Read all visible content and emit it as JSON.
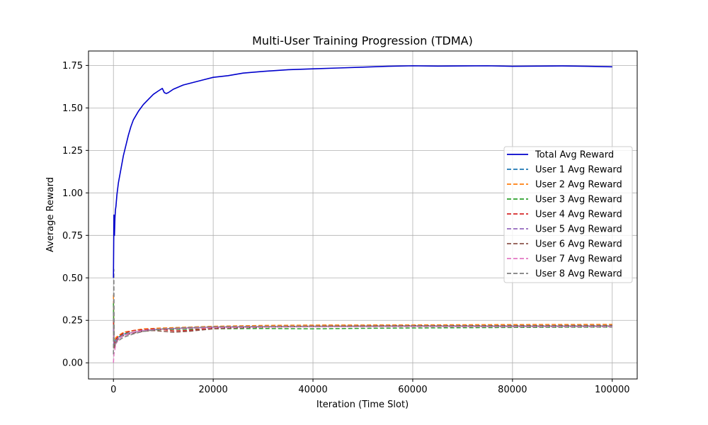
{
  "chart_data": {
    "type": "line",
    "title": "Multi-User Training Progression (TDMA)",
    "xlabel": "Iteration (Time Slot)",
    "ylabel": "Average Reward",
    "xlim": [
      -5000,
      105000
    ],
    "ylim": [
      -0.095,
      1.835
    ],
    "xticks": [
      0,
      20000,
      40000,
      60000,
      80000,
      100000
    ],
    "xtick_labels": [
      "0",
      "20000",
      "40000",
      "60000",
      "80000",
      "100000"
    ],
    "yticks": [
      0.0,
      0.25,
      0.5,
      0.75,
      1.0,
      1.25,
      1.5,
      1.75
    ],
    "ytick_labels": [
      "0.00",
      "0.25",
      "0.50",
      "0.75",
      "1.00",
      "1.25",
      "1.50",
      "1.75"
    ],
    "grid": true,
    "legend_position": "center-right",
    "series": [
      {
        "name": "Total Avg Reward",
        "color": "#0000cc",
        "style": "solid",
        "x": [
          0,
          100,
          200,
          300,
          400,
          500,
          700,
          1000,
          1500,
          2000,
          2500,
          3000,
          3500,
          4000,
          5000,
          6000,
          7000,
          8000,
          9000,
          9800,
          10200,
          10600,
          11000,
          12000,
          14000,
          16000,
          18000,
          20000,
          23000,
          26000,
          30000,
          35000,
          40000,
          45000,
          50000,
          55000,
          60000,
          65000,
          70000,
          75000,
          80000,
          85000,
          90000,
          95000,
          100000
        ],
        "y": [
          0.5,
          0.87,
          0.75,
          0.85,
          0.9,
          0.92,
          0.99,
          1.06,
          1.14,
          1.22,
          1.28,
          1.34,
          1.39,
          1.43,
          1.48,
          1.52,
          1.55,
          1.58,
          1.6,
          1.615,
          1.59,
          1.585,
          1.59,
          1.61,
          1.635,
          1.65,
          1.665,
          1.68,
          1.69,
          1.705,
          1.715,
          1.725,
          1.73,
          1.735,
          1.74,
          1.745,
          1.748,
          1.746,
          1.747,
          1.748,
          1.745,
          1.746,
          1.747,
          1.745,
          1.742
        ]
      },
      {
        "name": "User 1 Avg Reward",
        "color": "#1f77b4",
        "style": "dashed",
        "x": [
          0,
          100,
          300,
          500,
          1000,
          2000,
          4000,
          6000,
          10000,
          15000,
          20000,
          30000,
          40000,
          60000,
          80000,
          100000
        ],
        "y": [
          0.3,
          0.1,
          0.12,
          0.14,
          0.15,
          0.17,
          0.18,
          0.19,
          0.2,
          0.205,
          0.21,
          0.213,
          0.215,
          0.217,
          0.216,
          0.217
        ]
      },
      {
        "name": "User 2 Avg Reward",
        "color": "#ff7f0e",
        "style": "dashed",
        "x": [
          0,
          100,
          300,
          500,
          1000,
          2000,
          4000,
          6000,
          10000,
          15000,
          20000,
          30000,
          40000,
          60000,
          80000,
          100000
        ],
        "y": [
          0.4,
          0.12,
          0.13,
          0.15,
          0.16,
          0.18,
          0.19,
          0.2,
          0.205,
          0.21,
          0.215,
          0.22,
          0.222,
          0.223,
          0.225,
          0.226
        ]
      },
      {
        "name": "User 3 Avg Reward",
        "color": "#2ca02c",
        "style": "dashed",
        "x": [
          0,
          100,
          300,
          500,
          1000,
          2000,
          4000,
          6000,
          10000,
          15000,
          20000,
          30000,
          40000,
          50000,
          60000,
          80000,
          100000
        ],
        "y": [
          0.35,
          0.11,
          0.12,
          0.14,
          0.15,
          0.17,
          0.18,
          0.19,
          0.195,
          0.198,
          0.2,
          0.202,
          0.2,
          0.203,
          0.205,
          0.208,
          0.21
        ]
      },
      {
        "name": "User 4 Avg Reward",
        "color": "#d62728",
        "style": "dashed",
        "x": [
          0,
          100,
          300,
          500,
          1000,
          2000,
          4000,
          6000,
          8000,
          10000,
          12000,
          15000,
          20000,
          30000,
          40000,
          60000,
          80000,
          100000
        ],
        "y": [
          0.25,
          0.1,
          0.12,
          0.14,
          0.155,
          0.175,
          0.19,
          0.195,
          0.2,
          0.195,
          0.188,
          0.19,
          0.205,
          0.212,
          0.216,
          0.218,
          0.217,
          0.218
        ]
      },
      {
        "name": "User 5 Avg Reward",
        "color": "#9467bd",
        "style": "dashed",
        "x": [
          0,
          100,
          300,
          500,
          1000,
          2000,
          4000,
          6000,
          10000,
          15000,
          20000,
          30000,
          40000,
          60000,
          80000,
          100000
        ],
        "y": [
          0.2,
          0.09,
          0.11,
          0.13,
          0.145,
          0.165,
          0.18,
          0.19,
          0.2,
          0.205,
          0.21,
          0.213,
          0.214,
          0.216,
          0.215,
          0.216
        ]
      },
      {
        "name": "User 6 Avg Reward",
        "color": "#8c564b",
        "style": "dashed",
        "x": [
          0,
          100,
          300,
          500,
          1000,
          2000,
          4000,
          6000,
          8000,
          10000,
          12000,
          15000,
          20000,
          30000,
          40000,
          60000,
          80000,
          100000
        ],
        "y": [
          0.15,
          0.08,
          0.1,
          0.12,
          0.14,
          0.16,
          0.175,
          0.185,
          0.19,
          0.185,
          0.18,
          0.185,
          0.2,
          0.21,
          0.215,
          0.218,
          0.219,
          0.22
        ]
      },
      {
        "name": "User 7 Avg Reward",
        "color": "#e377c2",
        "style": "dashed",
        "x": [
          0,
          100,
          300,
          500,
          1000,
          2000,
          4000,
          6000,
          10000,
          15000,
          20000,
          30000,
          40000,
          60000,
          80000,
          100000
        ],
        "y": [
          0.0,
          0.05,
          0.08,
          0.11,
          0.14,
          0.16,
          0.18,
          0.19,
          0.198,
          0.203,
          0.207,
          0.21,
          0.212,
          0.213,
          0.212,
          0.212
        ]
      },
      {
        "name": "User 8 Avg Reward",
        "color": "#7f7f7f",
        "style": "dashed",
        "x": [
          0,
          80,
          150,
          300,
          500,
          1000,
          2000,
          4000,
          6000,
          10000,
          15000,
          20000,
          30000,
          40000,
          60000,
          80000,
          100000
        ],
        "y": [
          0.05,
          0.55,
          0.13,
          0.11,
          0.12,
          0.13,
          0.15,
          0.17,
          0.185,
          0.2,
          0.208,
          0.212,
          0.215,
          0.216,
          0.218,
          0.217,
          0.217
        ]
      }
    ]
  }
}
